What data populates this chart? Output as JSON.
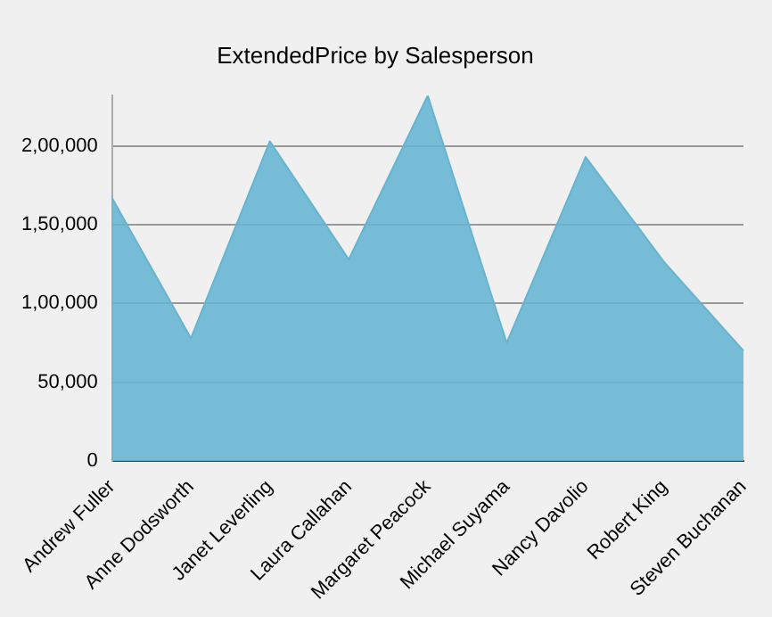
{
  "chart_data": {
    "type": "area",
    "title": "ExtendedPrice by Salesperson",
    "categories": [
      "Andrew Fuller",
      "Anne Dodsworth",
      "Janet Leverling",
      "Laura Callahan",
      "Margaret Peacock",
      "Michael Suyama",
      "Nancy Davolio",
      "Robert King",
      "Steven Buchanan"
    ],
    "series": [
      {
        "color": "#64b4d2",
        "values": [
          167000,
          78000,
          203000,
          128000,
          232000,
          75000,
          193000,
          126000,
          70000
        ]
      }
    ],
    "ylim": [
      0,
      232000
    ],
    "yticks": [
      0,
      {
        "value": 50000,
        "label": "50,000"
      },
      {
        "value": 100000,
        "label": "1,00,000"
      },
      {
        "value": 150000,
        "label": "1,50,000"
      },
      {
        "value": 200000,
        "label": "2,00,000"
      }
    ],
    "grid": "y",
    "legend": false
  }
}
